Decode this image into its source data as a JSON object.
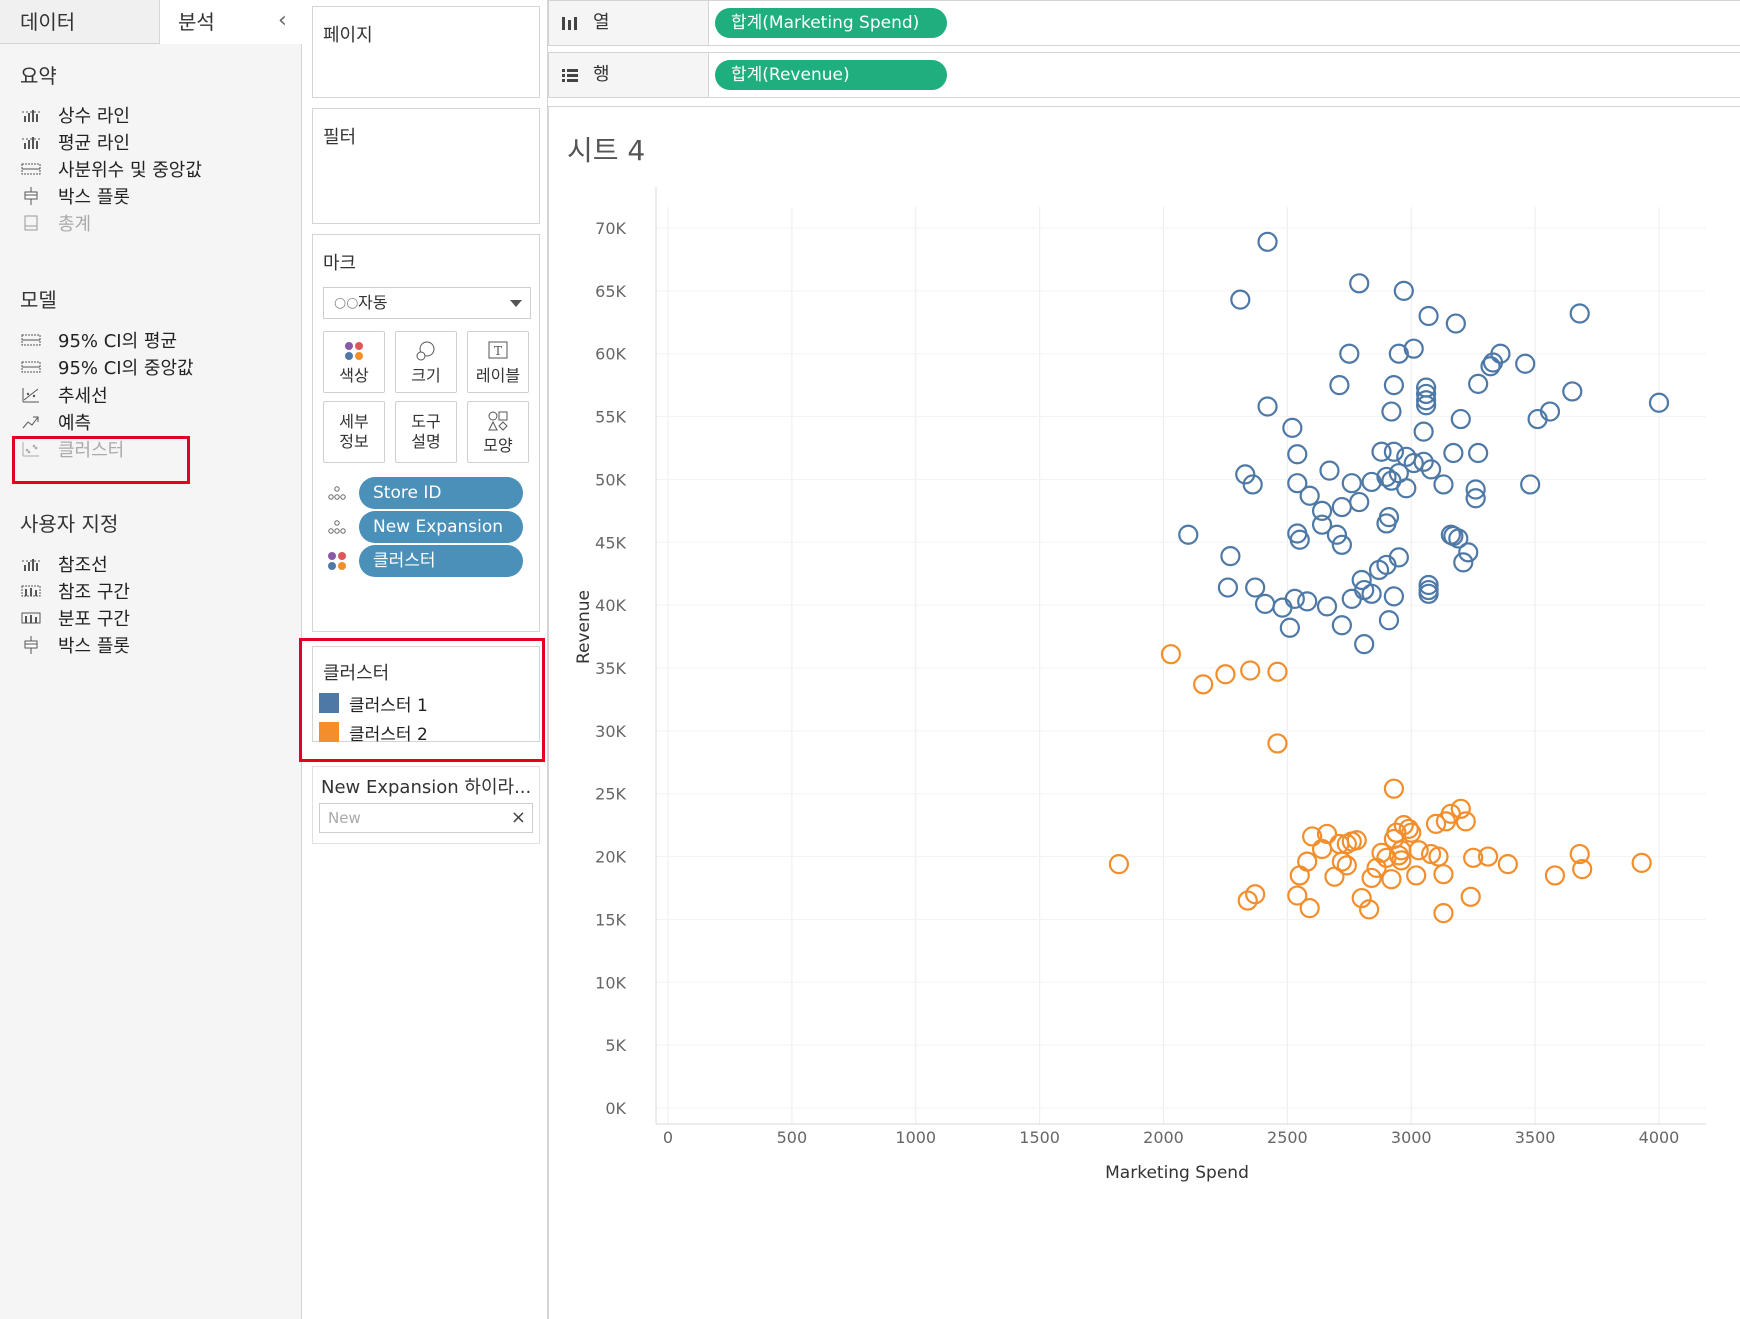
{
  "left_pane": {
    "tabs": [
      "데이터",
      "분석"
    ],
    "collapse_glyph": "‹",
    "summary": {
      "title": "요약",
      "items": [
        "상수 라인",
        "평균 라인",
        "사분위수 및 중앙값",
        "박스 플롯",
        "총계"
      ]
    },
    "model": {
      "title": "모델",
      "items": [
        "95% CI의 평균",
        "95% CI의 중앙값",
        "추세선",
        "예측",
        "클러스터"
      ]
    },
    "custom": {
      "title": "사용자 지정",
      "items": [
        "참조선",
        "참조 구간",
        "분포 구간",
        "박스 플롯"
      ]
    }
  },
  "cards": {
    "pages_title": "페이지",
    "filters_title": "필터",
    "marks": {
      "title": "마크",
      "mark_type": "자동",
      "buttons": [
        "색상",
        "크기",
        "레이블",
        "세부\n정보",
        "도구\n설명",
        "모양"
      ],
      "pills": [
        "Store ID",
        "New Expansion",
        "클러스터"
      ]
    },
    "cluster_legend": {
      "title": "클러스터",
      "items": [
        {
          "label": "클러스터 1",
          "color": "#4e79a7"
        },
        {
          "label": "클러스터 2",
          "color": "#f28e2b"
        }
      ]
    },
    "filter_control": {
      "title": "New Expansion 하이라...",
      "value": "New",
      "clear_glyph": "×"
    }
  },
  "shelves": {
    "columns": {
      "label": "열",
      "pill": "합계(Marketing Spend)"
    },
    "rows": {
      "label": "행",
      "pill": "합계(Revenue)"
    }
  },
  "sheet_title": "시트 4",
  "colors": {
    "accent_pill": "#1fae7e",
    "mark_pill": "#4a90b8",
    "highlight_box": "#e6001f"
  },
  "chart_data": {
    "type": "scatter",
    "xlabel": "Marketing Spend",
    "ylabel": "Revenue",
    "xlim": [
      0,
      4200
    ],
    "ylim": [
      0,
      72000
    ],
    "x_ticks": [
      0,
      500,
      1000,
      1500,
      2000,
      2500,
      3000,
      3500,
      4000
    ],
    "x_tick_labels": [
      "0",
      "500",
      "1000",
      "1500",
      "2000",
      "2500",
      "3000",
      "3500",
      "4000"
    ],
    "y_ticks": [
      0,
      5000,
      10000,
      15000,
      20000,
      25000,
      30000,
      35000,
      40000,
      45000,
      50000,
      55000,
      60000,
      65000,
      70000
    ],
    "y_tick_labels": [
      "0K",
      "5K",
      "10K",
      "15K",
      "20K",
      "25K",
      "30K",
      "35K",
      "40K",
      "45K",
      "50K",
      "55K",
      "60K",
      "65K",
      "70K"
    ],
    "grid": "vertical",
    "marker": "open-circle",
    "series": [
      {
        "color": "#4e79a7",
        "points": [
          [
            2420,
            68900
          ],
          [
            2310,
            64300
          ],
          [
            2790,
            65600
          ],
          [
            2970,
            65000
          ],
          [
            3070,
            63000
          ],
          [
            3180,
            62400
          ],
          [
            3680,
            63200
          ],
          [
            3010,
            60400
          ],
          [
            2750,
            60000
          ],
          [
            2950,
            60000
          ],
          [
            3360,
            60000
          ],
          [
            2710,
            57500
          ],
          [
            2930,
            57500
          ],
          [
            3060,
            57300
          ],
          [
            3060,
            56300
          ],
          [
            3060,
            55900
          ],
          [
            2920,
            55400
          ],
          [
            2420,
            55800
          ],
          [
            3560,
            55400
          ],
          [
            3650,
            57000
          ],
          [
            4000,
            56100
          ],
          [
            3200,
            54800
          ],
          [
            3510,
            54800
          ],
          [
            2520,
            54100
          ],
          [
            3050,
            53800
          ],
          [
            3320,
            59000
          ],
          [
            3330,
            59300
          ],
          [
            3460,
            59200
          ],
          [
            3270,
            57600
          ],
          [
            3060,
            56800
          ],
          [
            2540,
            52000
          ],
          [
            2930,
            52200
          ],
          [
            2980,
            51800
          ],
          [
            3010,
            51300
          ],
          [
            2880,
            52200
          ],
          [
            3080,
            50800
          ],
          [
            2330,
            50400
          ],
          [
            2360,
            49600
          ],
          [
            2540,
            49700
          ],
          [
            2670,
            50700
          ],
          [
            2760,
            49700
          ],
          [
            2840,
            49800
          ],
          [
            2920,
            49900
          ],
          [
            2950,
            50500
          ],
          [
            2900,
            50200
          ],
          [
            2980,
            49300
          ],
          [
            3050,
            51400
          ],
          [
            3130,
            49600
          ],
          [
            3260,
            49200
          ],
          [
            3260,
            48500
          ],
          [
            3480,
            49600
          ],
          [
            3170,
            52100
          ],
          [
            3270,
            52100
          ],
          [
            2590,
            48700
          ],
          [
            2640,
            47500
          ],
          [
            2720,
            47800
          ],
          [
            2790,
            48200
          ],
          [
            2640,
            46400
          ],
          [
            2700,
            45600
          ],
          [
            2720,
            44800
          ],
          [
            2540,
            45700
          ],
          [
            2550,
            45200
          ],
          [
            2900,
            46500
          ],
          [
            2910,
            47000
          ],
          [
            2950,
            43800
          ],
          [
            2870,
            42800
          ],
          [
            2900,
            43200
          ],
          [
            2800,
            42000
          ],
          [
            2100,
            45600
          ],
          [
            2270,
            43900
          ],
          [
            2260,
            41400
          ],
          [
            2370,
            41400
          ],
          [
            2410,
            40100
          ],
          [
            2480,
            39800
          ],
          [
            2530,
            40500
          ],
          [
            2580,
            40300
          ],
          [
            2760,
            40500
          ],
          [
            2660,
            39900
          ],
          [
            2810,
            41200
          ],
          [
            2840,
            40900
          ],
          [
            2930,
            40700
          ],
          [
            2510,
            38200
          ],
          [
            2720,
            38400
          ],
          [
            2910,
            38800
          ],
          [
            2810,
            36900
          ],
          [
            3070,
            41600
          ],
          [
            3070,
            41200
          ],
          [
            3070,
            40900
          ],
          [
            3160,
            45600
          ],
          [
            3170,
            45500
          ],
          [
            3190,
            45300
          ],
          [
            3230,
            44200
          ],
          [
            3210,
            43400
          ]
        ]
      },
      {
        "color": "#f28e2b",
        "points": [
          [
            2030,
            36100
          ],
          [
            2160,
            33700
          ],
          [
            2250,
            34500
          ],
          [
            2350,
            34800
          ],
          [
            2460,
            34700
          ],
          [
            2460,
            29000
          ],
          [
            1820,
            19400
          ],
          [
            2340,
            16500
          ],
          [
            2370,
            17000
          ],
          [
            2540,
            16900
          ],
          [
            2590,
            15900
          ],
          [
            2550,
            18500
          ],
          [
            2580,
            19600
          ],
          [
            2600,
            21600
          ],
          [
            2660,
            21800
          ],
          [
            2640,
            20600
          ],
          [
            2710,
            21000
          ],
          [
            2740,
            21000
          ],
          [
            2690,
            18400
          ],
          [
            2720,
            19600
          ],
          [
            2740,
            19300
          ],
          [
            2760,
            21200
          ],
          [
            2780,
            21300
          ],
          [
            2800,
            16700
          ],
          [
            2830,
            15800
          ],
          [
            2840,
            18300
          ],
          [
            2860,
            19100
          ],
          [
            2880,
            20300
          ],
          [
            2900,
            19900
          ],
          [
            2920,
            18200
          ],
          [
            2930,
            21400
          ],
          [
            2940,
            21900
          ],
          [
            2950,
            20100
          ],
          [
            2960,
            19700
          ],
          [
            2970,
            22500
          ],
          [
            2990,
            22200
          ],
          [
            3000,
            21900
          ],
          [
            3020,
            18500
          ],
          [
            3030,
            20500
          ],
          [
            3080,
            20200
          ],
          [
            3110,
            20000
          ],
          [
            3130,
            18600
          ],
          [
            3100,
            22600
          ],
          [
            3140,
            22800
          ],
          [
            3160,
            23400
          ],
          [
            3200,
            23800
          ],
          [
            3220,
            22800
          ],
          [
            3240,
            16800
          ],
          [
            3250,
            19900
          ],
          [
            3310,
            20000
          ],
          [
            3390,
            19400
          ],
          [
            3580,
            18500
          ],
          [
            3680,
            20200
          ],
          [
            3690,
            19000
          ],
          [
            3930,
            19500
          ],
          [
            2930,
            25400
          ],
          [
            3130,
            15500
          ],
          [
            2960,
            20500
          ]
        ]
      }
    ]
  }
}
